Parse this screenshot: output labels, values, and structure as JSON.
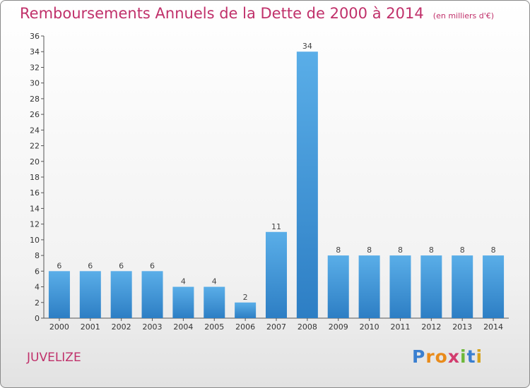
{
  "header": {
    "title": "Remboursements Annuels de la Dette de 2000 à 2014",
    "subtitle": "(en milliers d'€)"
  },
  "footer": {
    "commune": "JUVELIZE",
    "logo_letters": [
      "P",
      "r",
      "o",
      "x",
      "i",
      "t",
      "i"
    ],
    "logo_colors": [
      "#3a7fd0",
      "#e98b1a",
      "#e98b1a",
      "#d23c6e",
      "#6db83a",
      "#3a7fd0",
      "#d6a21b"
    ]
  },
  "colors": {
    "bar_top": "#5aaee8",
    "bar_bottom": "#2d7ec4",
    "title": "#c0306a"
  },
  "chart_data": {
    "type": "bar",
    "title": "Remboursements Annuels de la Dette de 2000 à 2014",
    "xlabel": "",
    "ylabel": "",
    "categories": [
      "2000",
      "2001",
      "2002",
      "2003",
      "2004",
      "2005",
      "2006",
      "2007",
      "2008",
      "2009",
      "2010",
      "2011",
      "2012",
      "2013",
      "2014"
    ],
    "values": [
      6,
      6,
      6,
      6,
      4,
      4,
      2,
      11,
      34,
      8,
      8,
      8,
      8,
      8,
      8
    ],
    "ylim": [
      0,
      36
    ],
    "yticks": [
      0,
      2,
      4,
      6,
      8,
      10,
      12,
      14,
      16,
      18,
      20,
      22,
      24,
      26,
      28,
      30,
      32,
      34,
      36
    ],
    "grid": false
  }
}
